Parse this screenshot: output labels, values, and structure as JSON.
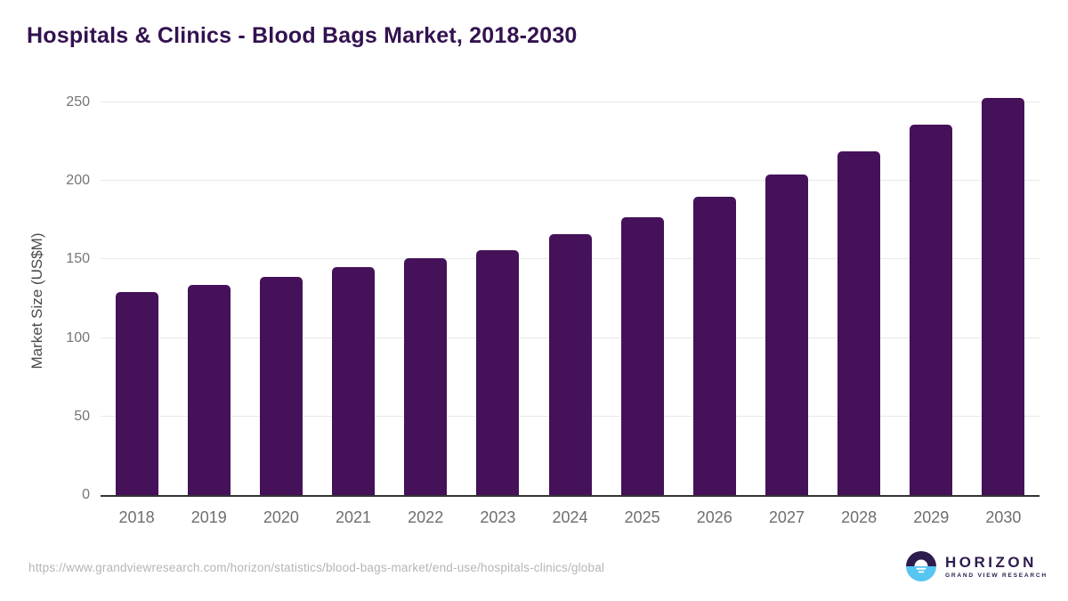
{
  "title": "Hospitals & Clinics - Blood Bags Market, 2018-2030",
  "source_url": "https://www.grandviewresearch.com/horizon/statistics/blood-bags-market/end-use/hospitals-clinics/global",
  "logo": {
    "name": "HORIZON",
    "subtitle": "GRAND VIEW RESEARCH"
  },
  "colors": {
    "bar": "#451159",
    "title": "#331250",
    "axis": "#333333",
    "grid": "#e8e8e8",
    "y_tick": "#757575",
    "x_label": "#6e6e6e",
    "url_text": "#b5b5b5",
    "logo_purple": "#2d1b4e",
    "logo_blue": "#56c5f2"
  },
  "chart_data": {
    "type": "bar",
    "title": "Hospitals & Clinics - Blood Bags Market, 2018-2030",
    "categories": [
      "2018",
      "2019",
      "2020",
      "2021",
      "2022",
      "2023",
      "2024",
      "2025",
      "2026",
      "2027",
      "2028",
      "2029",
      "2030"
    ],
    "values": [
      129,
      134,
      139,
      145,
      151,
      156,
      166,
      177,
      190,
      204,
      219,
      236,
      253
    ],
    "xlabel": "",
    "ylabel": "Market Size (US$M)",
    "ylim": [
      0,
      250
    ],
    "yticks": [
      0,
      50,
      100,
      150,
      200,
      250
    ],
    "grid": true,
    "legend": false,
    "bar_color": "#451159"
  }
}
